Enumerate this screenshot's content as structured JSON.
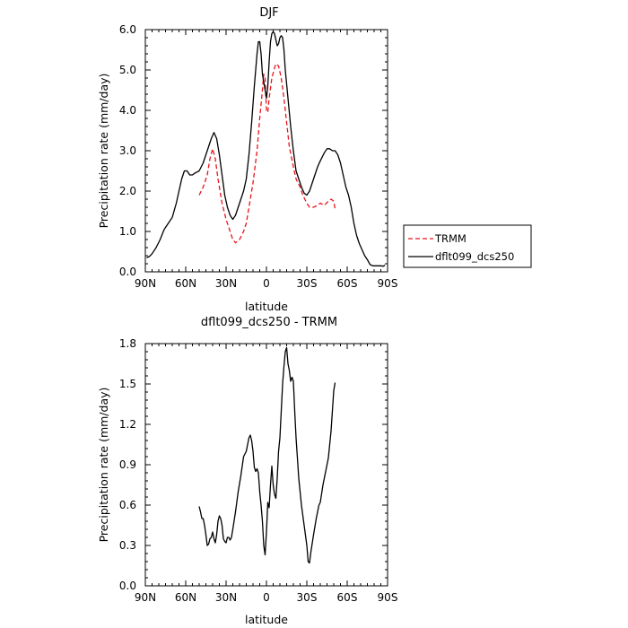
{
  "chart_data": [
    {
      "type": "line",
      "title": "DJF",
      "xlabel": "latitude",
      "ylabel": "Precipitation rate (mm/day)",
      "xlim": [
        -90,
        90
      ],
      "ylim": [
        0,
        6
      ],
      "x_ticks": [
        {
          "value": -90,
          "label": "90N"
        },
        {
          "value": -60,
          "label": "60N"
        },
        {
          "value": -30,
          "label": "30N"
        },
        {
          "value": 0,
          "label": "0"
        },
        {
          "value": 30,
          "label": "30S"
        },
        {
          "value": 60,
          "label": "60S"
        },
        {
          "value": 90,
          "label": "90S"
        }
      ],
      "y_ticks": [
        {
          "value": 0,
          "label": "0.0"
        },
        {
          "value": 1,
          "label": "1.0"
        },
        {
          "value": 2,
          "label": "2.0"
        },
        {
          "value": 3,
          "label": "3.0"
        },
        {
          "value": 4,
          "label": "4.0"
        },
        {
          "value": 5,
          "label": "5.0"
        },
        {
          "value": 6,
          "label": "6.0"
        }
      ],
      "legend_position": "outside-right",
      "series": [
        {
          "name": "TRMM",
          "color": "#e8141c",
          "dash": "dashed",
          "points": [
            [
              -50,
              1.9
            ],
            [
              -47,
              2.1
            ],
            [
              -44,
              2.4
            ],
            [
              -42,
              2.8
            ],
            [
              -40,
              3.05
            ],
            [
              -38,
              2.8
            ],
            [
              -36,
              2.3
            ],
            [
              -33,
              1.7
            ],
            [
              -30,
              1.3
            ],
            [
              -27,
              1.0
            ],
            [
              -25,
              0.8
            ],
            [
              -23,
              0.72
            ],
            [
              -20,
              0.8
            ],
            [
              -17,
              1.0
            ],
            [
              -15,
              1.2
            ],
            [
              -13,
              1.6
            ],
            [
              -10,
              2.2
            ],
            [
              -7,
              3.0
            ],
            [
              -5,
              3.8
            ],
            [
              -3,
              4.5
            ],
            [
              -2,
              4.9
            ],
            [
              -1,
              4.8
            ],
            [
              0,
              4.0
            ],
            [
              1,
              3.95
            ],
            [
              2,
              4.3
            ],
            [
              4,
              4.8
            ],
            [
              6,
              5.05
            ],
            [
              7,
              5.15
            ],
            [
              9,
              5.1
            ],
            [
              11,
              4.8
            ],
            [
              13,
              4.3
            ],
            [
              15,
              3.7
            ],
            [
              17,
              3.1
            ],
            [
              20,
              2.6
            ],
            [
              22,
              2.3
            ],
            [
              25,
              2.1
            ],
            [
              27,
              1.9
            ],
            [
              30,
              1.7
            ],
            [
              32,
              1.6
            ],
            [
              35,
              1.6
            ],
            [
              38,
              1.65
            ],
            [
              40,
              1.7
            ],
            [
              43,
              1.65
            ],
            [
              46,
              1.75
            ],
            [
              48,
              1.8
            ],
            [
              50,
              1.75
            ],
            [
              51,
              1.55
            ]
          ]
        },
        {
          "name": "dflt099_dcs250",
          "color": "#000000",
          "dash": "solid",
          "points": [
            [
              -89,
              0.35
            ],
            [
              -87,
              0.38
            ],
            [
              -85,
              0.45
            ],
            [
              -82,
              0.6
            ],
            [
              -79,
              0.8
            ],
            [
              -76,
              1.05
            ],
            [
              -73,
              1.2
            ],
            [
              -70,
              1.35
            ],
            [
              -67,
              1.7
            ],
            [
              -65,
              2.0
            ],
            [
              -63,
              2.3
            ],
            [
              -61,
              2.5
            ],
            [
              -59,
              2.5
            ],
            [
              -57,
              2.4
            ],
            [
              -55,
              2.4
            ],
            [
              -53,
              2.45
            ],
            [
              -50,
              2.5
            ],
            [
              -47,
              2.7
            ],
            [
              -45,
              2.9
            ],
            [
              -43,
              3.1
            ],
            [
              -41,
              3.3
            ],
            [
              -39,
              3.45
            ],
            [
              -37,
              3.3
            ],
            [
              -35,
              2.9
            ],
            [
              -33,
              2.4
            ],
            [
              -31,
              1.9
            ],
            [
              -29,
              1.6
            ],
            [
              -27,
              1.4
            ],
            [
              -25,
              1.3
            ],
            [
              -23,
              1.4
            ],
            [
              -21,
              1.6
            ],
            [
              -19,
              1.8
            ],
            [
              -17,
              2.0
            ],
            [
              -15,
              2.3
            ],
            [
              -13,
              2.9
            ],
            [
              -11,
              3.7
            ],
            [
              -9,
              4.6
            ],
            [
              -7,
              5.4
            ],
            [
              -6,
              5.7
            ],
            [
              -5,
              5.7
            ],
            [
              -4,
              5.4
            ],
            [
              -3,
              4.9
            ],
            [
              -1,
              4.5
            ],
            [
              0,
              4.3
            ],
            [
              1,
              4.6
            ],
            [
              2,
              5.2
            ],
            [
              3,
              5.7
            ],
            [
              4,
              5.9
            ],
            [
              5,
              5.95
            ],
            [
              6,
              5.9
            ],
            [
              7,
              5.75
            ],
            [
              8,
              5.6
            ],
            [
              9,
              5.65
            ],
            [
              10,
              5.8
            ],
            [
              11,
              5.85
            ],
            [
              12,
              5.8
            ],
            [
              13,
              5.5
            ],
            [
              14,
              5.0
            ],
            [
              16,
              4.3
            ],
            [
              18,
              3.6
            ],
            [
              20,
              3.0
            ],
            [
              22,
              2.5
            ],
            [
              24,
              2.3
            ],
            [
              26,
              2.1
            ],
            [
              28,
              1.95
            ],
            [
              30,
              1.9
            ],
            [
              32,
              2.0
            ],
            [
              34,
              2.2
            ],
            [
              36,
              2.4
            ],
            [
              38,
              2.6
            ],
            [
              40,
              2.75
            ],
            [
              43,
              2.95
            ],
            [
              45,
              3.05
            ],
            [
              47,
              3.05
            ],
            [
              49,
              3.0
            ],
            [
              51,
              3.0
            ],
            [
              53,
              2.9
            ],
            [
              55,
              2.7
            ],
            [
              57,
              2.4
            ],
            [
              59,
              2.1
            ],
            [
              61,
              1.9
            ],
            [
              63,
              1.6
            ],
            [
              65,
              1.2
            ],
            [
              67,
              0.9
            ],
            [
              69,
              0.7
            ],
            [
              71,
              0.55
            ],
            [
              73,
              0.4
            ],
            [
              75,
              0.3
            ],
            [
              77,
              0.18
            ],
            [
              79,
              0.15
            ],
            [
              82,
              0.15
            ],
            [
              85,
              0.15
            ],
            [
              87,
              0.14
            ],
            [
              88,
              0.17
            ]
          ]
        }
      ]
    },
    {
      "type": "line",
      "title": "dflt099_dcs250 - TRMM",
      "xlabel": "latitude",
      "ylabel": "Precipitation rate (mm/day)",
      "xlim": [
        -90,
        90
      ],
      "ylim": [
        0,
        1.8
      ],
      "x_ticks": [
        {
          "value": -90,
          "label": "90N"
        },
        {
          "value": -60,
          "label": "60N"
        },
        {
          "value": -30,
          "label": "30N"
        },
        {
          "value": 0,
          "label": "0"
        },
        {
          "value": 30,
          "label": "30S"
        },
        {
          "value": 60,
          "label": "60S"
        },
        {
          "value": 90,
          "label": "90S"
        }
      ],
      "y_ticks": [
        {
          "value": 0,
          "label": "0.0"
        },
        {
          "value": 0.3,
          "label": "0.3"
        },
        {
          "value": 0.6,
          "label": "0.6"
        },
        {
          "value": 0.9,
          "label": "0.9"
        },
        {
          "value": 1.2,
          "label": "1.2"
        },
        {
          "value": 1.5,
          "label": "1.5"
        },
        {
          "value": 1.8,
          "label": "1.8"
        }
      ],
      "series": [
        {
          "name": "",
          "color": "#000000",
          "dash": "solid",
          "points": [
            [
              -50,
              0.59
            ],
            [
              -49,
              0.55
            ],
            [
              -48,
              0.5
            ],
            [
              -47,
              0.5
            ],
            [
              -46,
              0.45
            ],
            [
              -45,
              0.38
            ],
            [
              -44,
              0.3
            ],
            [
              -43,
              0.31
            ],
            [
              -42,
              0.35
            ],
            [
              -41,
              0.36
            ],
            [
              -40,
              0.4
            ],
            [
              -39,
              0.35
            ],
            [
              -38,
              0.32
            ],
            [
              -37,
              0.38
            ],
            [
              -36,
              0.48
            ],
            [
              -35,
              0.52
            ],
            [
              -34,
              0.5
            ],
            [
              -33,
              0.45
            ],
            [
              -32,
              0.35
            ],
            [
              -31,
              0.33
            ],
            [
              -30,
              0.32
            ],
            [
              -29,
              0.36
            ],
            [
              -28,
              0.36
            ],
            [
              -27,
              0.34
            ],
            [
              -26,
              0.36
            ],
            [
              -25,
              0.42
            ],
            [
              -23,
              0.55
            ],
            [
              -21,
              0.7
            ],
            [
              -19,
              0.82
            ],
            [
              -17,
              0.96
            ],
            [
              -15,
              1.0
            ],
            [
              -14,
              1.05
            ],
            [
              -13,
              1.1
            ],
            [
              -12,
              1.12
            ],
            [
              -11,
              1.08
            ],
            [
              -10,
              1.0
            ],
            [
              -9,
              0.88
            ],
            [
              -8,
              0.85
            ],
            [
              -7,
              0.87
            ],
            [
              -6,
              0.84
            ],
            [
              -5,
              0.7
            ],
            [
              -4,
              0.6
            ],
            [
              -3,
              0.48
            ],
            [
              -2,
              0.3
            ],
            [
              -1,
              0.23
            ],
            [
              0,
              0.4
            ],
            [
              1,
              0.62
            ],
            [
              2,
              0.58
            ],
            [
              3,
              0.75
            ],
            [
              4,
              0.89
            ],
            [
              5,
              0.75
            ],
            [
              6,
              0.68
            ],
            [
              7,
              0.65
            ],
            [
              8,
              0.8
            ],
            [
              9,
              1.0
            ],
            [
              10,
              1.1
            ],
            [
              11,
              1.3
            ],
            [
              12,
              1.5
            ],
            [
              13,
              1.63
            ],
            [
              14,
              1.74
            ],
            [
              15,
              1.77
            ],
            [
              16,
              1.65
            ],
            [
              17,
              1.6
            ],
            [
              18,
              1.52
            ],
            [
              19,
              1.55
            ],
            [
              20,
              1.52
            ],
            [
              21,
              1.3
            ],
            [
              22,
              1.1
            ],
            [
              24,
              0.8
            ],
            [
              26,
              0.6
            ],
            [
              28,
              0.45
            ],
            [
              30,
              0.3
            ],
            [
              31,
              0.18
            ],
            [
              32,
              0.17
            ],
            [
              33,
              0.25
            ],
            [
              35,
              0.38
            ],
            [
              37,
              0.5
            ],
            [
              39,
              0.6
            ],
            [
              40,
              0.62
            ],
            [
              42,
              0.75
            ],
            [
              44,
              0.85
            ],
            [
              46,
              0.95
            ],
            [
              47,
              1.05
            ],
            [
              48,
              1.15
            ],
            [
              49,
              1.3
            ],
            [
              50,
              1.45
            ],
            [
              51,
              1.51
            ]
          ]
        }
      ]
    }
  ]
}
